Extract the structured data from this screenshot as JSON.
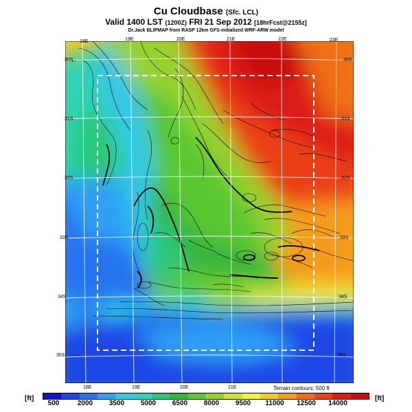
{
  "title": {
    "main": "Cu Cloudbase",
    "main_suffix": "(Sfc. LCL)",
    "valid": "Valid 1400 LST",
    "valid_utc": "(1200Z)",
    "date": "FRI 21 Sep 2012",
    "forecast": "[18hrFcst@2155z]",
    "credit": "Dr.Jack BLIPMAP from RASP 12km GFS-initialized WRF-ARW model"
  },
  "map": {
    "top_lon_labels": [
      "18E",
      "19E",
      "20E",
      "21E",
      "22E",
      "23E"
    ],
    "bottom_lon_labels": [
      "18E",
      "19E",
      "20E",
      "21E"
    ],
    "right_lat_labels": [
      "30S",
      "31S",
      "32S",
      "33S",
      "34S",
      "35S"
    ],
    "left_lat_labels": [
      "30S",
      "31S",
      "32S",
      "33S",
      "34S",
      "35S"
    ],
    "terrain_note": "Terrain contours: 500 ft"
  },
  "legend": {
    "unit_left": "[ft]",
    "unit_right": "[ft]",
    "ticks": [
      "500",
      "2000",
      "3500",
      "5000",
      "6500",
      "8000",
      "9500",
      "11000",
      "12500",
      "14000"
    ],
    "colors": [
      "#1414d0",
      "#1e46e6",
      "#2873f0",
      "#2fa0f5",
      "#33c8e6",
      "#2ed2b4",
      "#2cc878",
      "#34b43c",
      "#5ac832",
      "#96d22d",
      "#d2e12d",
      "#f5f03c",
      "#f5c828",
      "#f59b1e",
      "#f06e19",
      "#eb4114",
      "#dc1e14",
      "#c80f0f"
    ]
  }
}
